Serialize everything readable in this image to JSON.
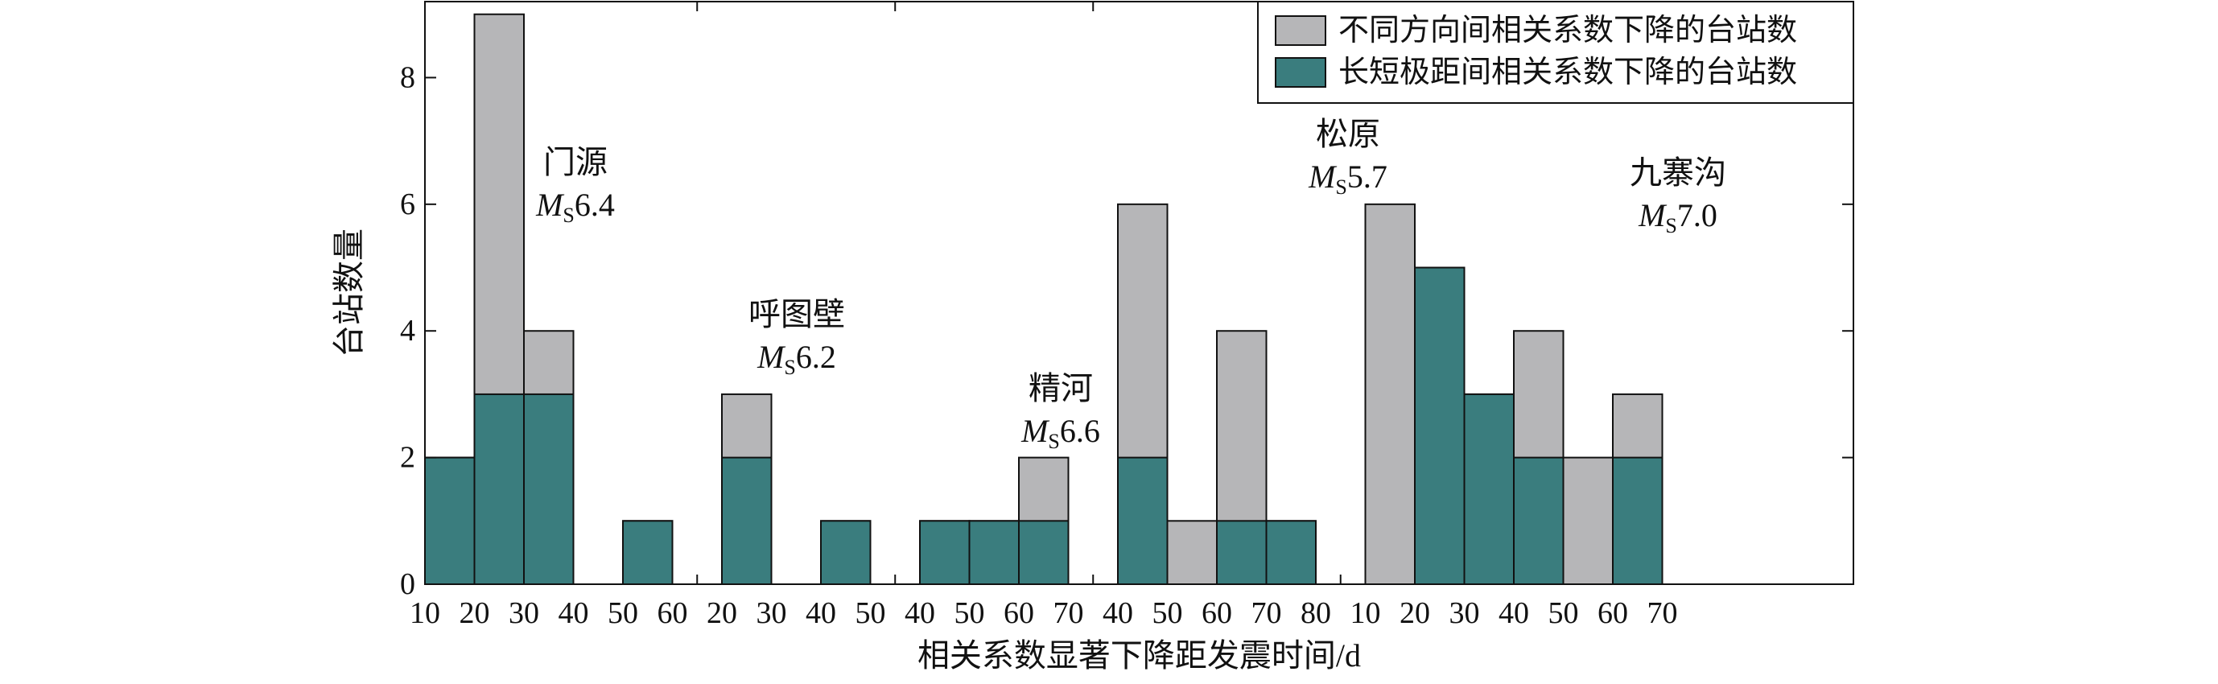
{
  "chart_data": {
    "type": "bar",
    "ylabel": "台站数量",
    "xlabel": "相关系数显著下降距发震时间/d",
    "ylim": [
      0,
      9.2
    ],
    "yticks": [
      0,
      2,
      4,
      6,
      8
    ],
    "legend_position": "top-right",
    "colors": {
      "direction": "#b6b6b8",
      "distance": "#3a7d7e"
    },
    "series": [
      {
        "key": "direction",
        "name": "不同方向间相关系数下降的台站数"
      },
      {
        "key": "distance",
        "name": "长短极距间相关系数下降的台站数"
      }
    ],
    "groups": [
      {
        "name": "门源",
        "magnitude_value": "6.4",
        "ticks": [
          "10",
          "20",
          "30",
          "40",
          "50",
          "60"
        ],
        "bins": [
          {
            "direction": 2,
            "distance": 2
          },
          {
            "direction": 9,
            "distance": 3
          },
          {
            "direction": 4,
            "distance": 3
          },
          {
            "direction": 0,
            "distance": 0
          },
          {
            "direction": 1,
            "distance": 1
          }
        ]
      },
      {
        "name": "呼图壁",
        "magnitude_value": "6.2",
        "ticks": [
          "20",
          "30",
          "40",
          "50"
        ],
        "bins": [
          {
            "direction": 3,
            "distance": 2
          },
          {
            "direction": 0,
            "distance": 0
          },
          {
            "direction": 1,
            "distance": 1
          }
        ]
      },
      {
        "name": "精河",
        "magnitude_value": "6.6",
        "ticks": [
          "40",
          "50",
          "60",
          "70"
        ],
        "bins": [
          {
            "direction": 1,
            "distance": 1
          },
          {
            "direction": 1,
            "distance": 1
          },
          {
            "direction": 2,
            "distance": 1
          }
        ]
      },
      {
        "name": "松原",
        "magnitude_value": "5.7",
        "ticks": [
          "40",
          "50",
          "60",
          "70",
          "80"
        ],
        "bins": [
          {
            "direction": 6,
            "distance": 2
          },
          {
            "direction": 1,
            "distance": 0
          },
          {
            "direction": 4,
            "distance": 1
          },
          {
            "direction": 1,
            "distance": 1
          }
        ]
      },
      {
        "name": "九寨沟",
        "magnitude_value": "7.0",
        "ticks": [
          "10",
          "20",
          "30",
          "40",
          "50",
          "60",
          "70"
        ],
        "bins": [
          {
            "direction": 6,
            "distance": 0
          },
          {
            "direction": 5,
            "distance": 5
          },
          {
            "direction": 3,
            "distance": 3
          },
          {
            "direction": 4,
            "distance": 2
          },
          {
            "direction": 2,
            "distance": 0
          },
          {
            "direction": 3,
            "distance": 2
          }
        ]
      }
    ],
    "magnitude_symbol": "M",
    "magnitude_subscript": "S"
  }
}
